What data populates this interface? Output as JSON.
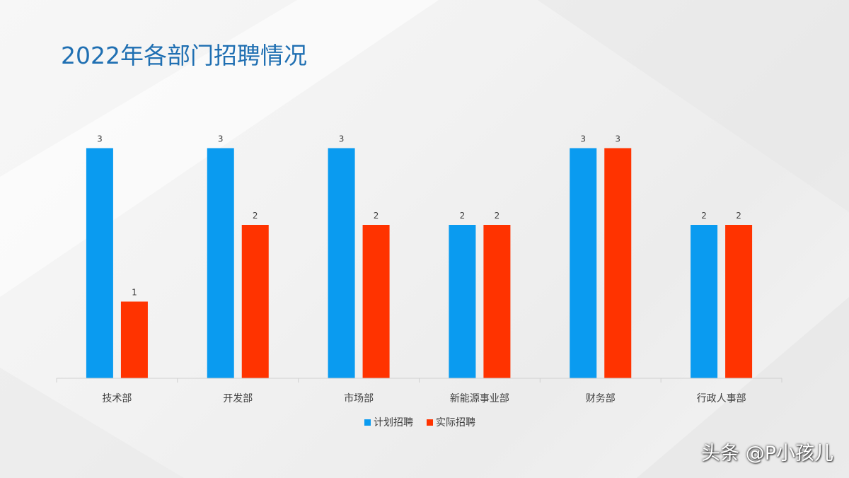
{
  "colors": {
    "title": "#1f6fb2",
    "planned": "#0a9bf0",
    "actual": "#ff3300",
    "axis": "#d0d0d0",
    "text": "#404040"
  },
  "watermark": "头条 @P小孩儿",
  "chart_data": {
    "type": "bar",
    "title": "2022年各部门招聘情况",
    "xlabel": "",
    "ylabel": "",
    "ylim": [
      0,
      3
    ],
    "grid": false,
    "legend_position": "bottom",
    "data_labels": true,
    "categories": [
      "技术部",
      "开发部",
      "市场部",
      "新能源事业部",
      "财务部",
      "行政人事部"
    ],
    "series": [
      {
        "name": "计划招聘",
        "color": "#0a9bf0",
        "values": [
          3,
          3,
          3,
          2,
          3,
          2
        ]
      },
      {
        "name": "实际招聘",
        "color": "#ff3300",
        "values": [
          1,
          2,
          2,
          2,
          3,
          2
        ]
      }
    ]
  }
}
